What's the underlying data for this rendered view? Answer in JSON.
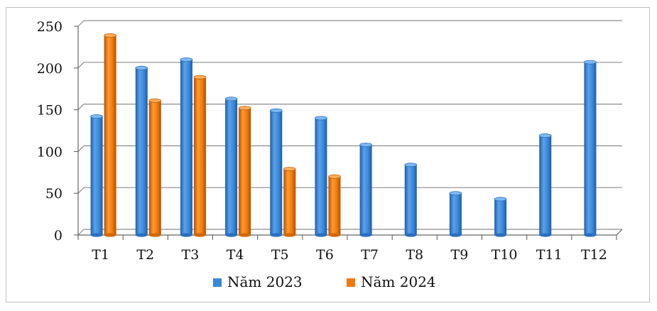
{
  "chart_data": {
    "type": "bar",
    "categories": [
      "T1",
      "T2",
      "T3",
      "T4",
      "T5",
      "T6",
      "T7",
      "T8",
      "T9",
      "T10",
      "T11",
      "T12"
    ],
    "series": [
      {
        "name": "Năm 2023",
        "color": "#3a87d9",
        "values": [
          142,
          200,
          210,
          163,
          149,
          140,
          108,
          84,
          50,
          43,
          119,
          207
        ]
      },
      {
        "name": "Năm 2024",
        "color": "#f07a0a",
        "values": [
          239,
          161,
          189,
          152,
          79,
          70,
          null,
          null,
          null,
          null,
          null,
          null
        ]
      }
    ],
    "ylim": [
      0,
      250
    ],
    "yticks": [
      0,
      50,
      100,
      150,
      200,
      250
    ],
    "grid": true,
    "legend_position": "bottom",
    "bar_style": "3d-cylinder"
  }
}
